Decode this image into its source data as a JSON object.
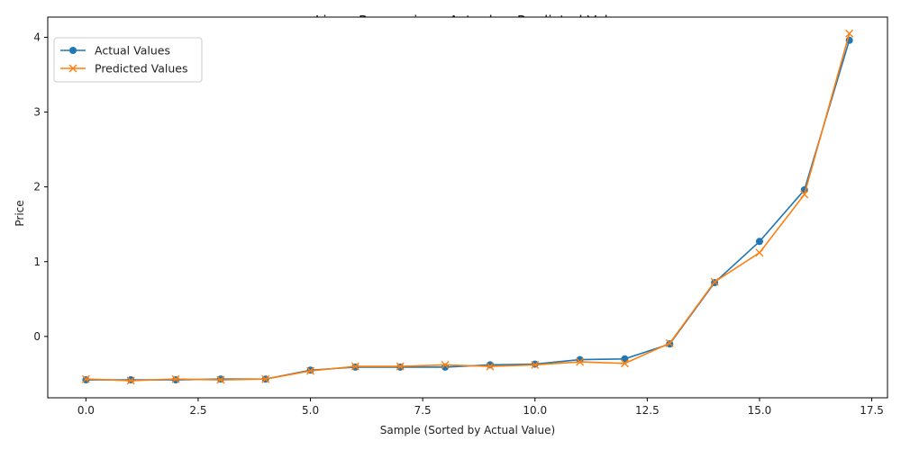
{
  "chart_data": {
    "type": "line",
    "title": "LinearRegression - Actual vs Predicted Values",
    "xlabel": "Sample (Sorted by Actual Value)",
    "ylabel": "Price",
    "xlim": [
      -0.85,
      17.85
    ],
    "ylim": [
      -0.82,
      4.27
    ],
    "xticks": [
      0.0,
      2.5,
      5.0,
      7.5,
      10.0,
      12.5,
      15.0,
      17.5
    ],
    "xtick_labels": [
      "0.0",
      "2.5",
      "5.0",
      "7.5",
      "10.0",
      "12.5",
      "15.0",
      "17.5"
    ],
    "yticks": [
      0,
      1,
      2,
      3,
      4
    ],
    "ytick_labels": [
      "0",
      "1",
      "2",
      "3",
      "4"
    ],
    "grid": false,
    "legend_position": "top-left",
    "x": [
      0,
      1,
      2,
      3,
      4,
      5,
      6,
      7,
      8,
      9,
      10,
      11,
      12,
      13,
      14,
      15,
      16,
      17
    ],
    "series": [
      {
        "name": "Actual Values",
        "color": "#1f77b4",
        "marker": "circle",
        "values": [
          -0.58,
          -0.58,
          -0.58,
          -0.57,
          -0.57,
          -0.45,
          -0.41,
          -0.41,
          -0.41,
          -0.38,
          -0.37,
          -0.31,
          -0.3,
          -0.1,
          0.72,
          1.27,
          1.96,
          3.96
        ]
      },
      {
        "name": "Predicted Values",
        "color": "#ff7f0e",
        "marker": "x",
        "values": [
          -0.57,
          -0.59,
          -0.57,
          -0.58,
          -0.57,
          -0.46,
          -0.4,
          -0.4,
          -0.38,
          -0.4,
          -0.38,
          -0.34,
          -0.36,
          -0.09,
          0.73,
          1.12,
          1.9,
          4.05
        ]
      }
    ]
  }
}
